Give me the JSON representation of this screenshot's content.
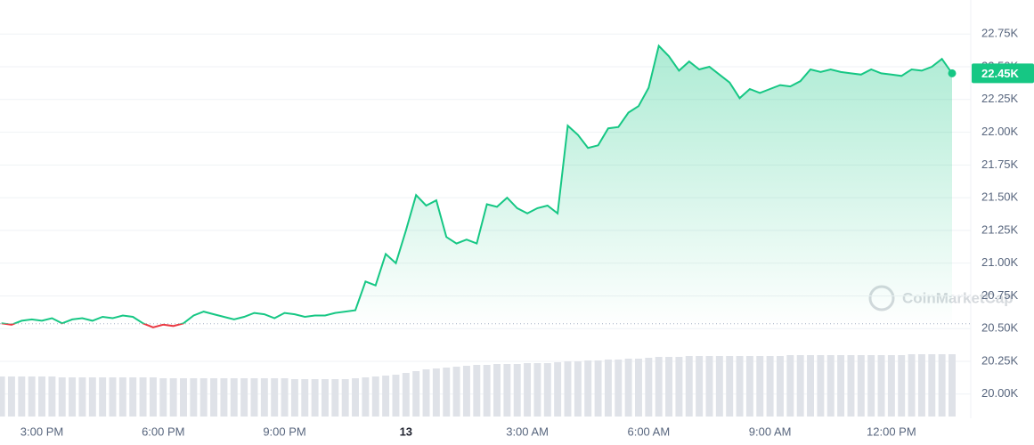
{
  "chart_data": {
    "type": "line",
    "categories": [
      null,
      null,
      null,
      null,
      "3:00 PM",
      null,
      null,
      null,
      null,
      null,
      null,
      null,
      null,
      null,
      null,
      null,
      "6:00 PM",
      null,
      null,
      null,
      null,
      null,
      null,
      null,
      null,
      null,
      null,
      null,
      "9:00 PM",
      null,
      null,
      null,
      null,
      null,
      null,
      null,
      null,
      null,
      null,
      null,
      "13",
      null,
      null,
      null,
      null,
      null,
      null,
      null,
      null,
      null,
      null,
      null,
      "3:00 AM",
      null,
      null,
      null,
      null,
      null,
      null,
      null,
      null,
      null,
      null,
      null,
      "6:00 AM",
      null,
      null,
      null,
      null,
      null,
      null,
      null,
      null,
      null,
      null,
      null,
      "9:00 AM",
      null,
      null,
      null,
      null,
      null,
      null,
      null,
      null,
      null,
      null,
      null,
      "12:00 PM",
      null,
      null,
      null,
      null,
      null,
      null
    ],
    "values": [
      20540,
      20530,
      20560,
      20570,
      20560,
      20580,
      20540,
      20570,
      20580,
      20560,
      20590,
      20580,
      20600,
      20590,
      20540,
      20510,
      20530,
      20520,
      20540,
      20600,
      20630,
      20610,
      20590,
      20570,
      20590,
      20620,
      20610,
      20580,
      20620,
      20610,
      20590,
      20600,
      20600,
      20620,
      20630,
      20640,
      20860,
      20830,
      21070,
      21000,
      21250,
      21520,
      21440,
      21480,
      21200,
      21150,
      21180,
      21150,
      21450,
      21430,
      21500,
      21420,
      21380,
      21420,
      21440,
      21380,
      22050,
      21980,
      21880,
      21900,
      22030,
      22040,
      22150,
      22200,
      22340,
      22660,
      22580,
      22470,
      22540,
      22480,
      22500,
      22440,
      22380,
      22260,
      22330,
      22300,
      22330,
      22360,
      22350,
      22390,
      22480,
      22460,
      22480,
      22460,
      22450,
      22440,
      22480,
      22450,
      22440,
      22430,
      22480,
      22470,
      22500,
      22560,
      22450
    ],
    "current_price_label": "22.45K",
    "volume": [
      45,
      45,
      45,
      45,
      45,
      45,
      44,
      44,
      44,
      44,
      44,
      44,
      44,
      44,
      44,
      44,
      43,
      43,
      43,
      43,
      43,
      43,
      43,
      43,
      43,
      43,
      43,
      43,
      43,
      42,
      42,
      42,
      42,
      42,
      42,
      43,
      44,
      45,
      46,
      47,
      49,
      51,
      53,
      54,
      55,
      56,
      57,
      58,
      58,
      59,
      59,
      59,
      60,
      60,
      60,
      61,
      62,
      62,
      63,
      63,
      64,
      64,
      65,
      65,
      66,
      67,
      67,
      67,
      68,
      68,
      68,
      68,
      68,
      68,
      68,
      68,
      68,
      68,
      69,
      69,
      69,
      69,
      69,
      69,
      69,
      69,
      69,
      69,
      69,
      69,
      70,
      70,
      70,
      70,
      70
    ],
    "volume_lim": [
      0,
      100
    ],
    "baseline": 20537,
    "color": "#16c784",
    "down_color": "#ea3943",
    "ylim": [
      19815,
      23010
    ],
    "yticks": [
      {
        "value": 20000,
        "label": "20.00K"
      },
      {
        "value": 20250,
        "label": "20.25K"
      },
      {
        "value": 20500,
        "label": "20.50K"
      },
      {
        "value": 20750,
        "label": "20.75K"
      },
      {
        "value": 21000,
        "label": "21.00K"
      },
      {
        "value": 21250,
        "label": "21.25K"
      },
      {
        "value": 21500,
        "label": "21.50K"
      },
      {
        "value": 21750,
        "label": "21.75K"
      },
      {
        "value": 22000,
        "label": "22.00K"
      },
      {
        "value": 22250,
        "label": "22.25K"
      },
      {
        "value": 22500,
        "label": "22.50K"
      },
      {
        "value": 22750,
        "label": "22.75K"
      }
    ],
    "grid": true,
    "watermark": "CoinMarketCap"
  }
}
